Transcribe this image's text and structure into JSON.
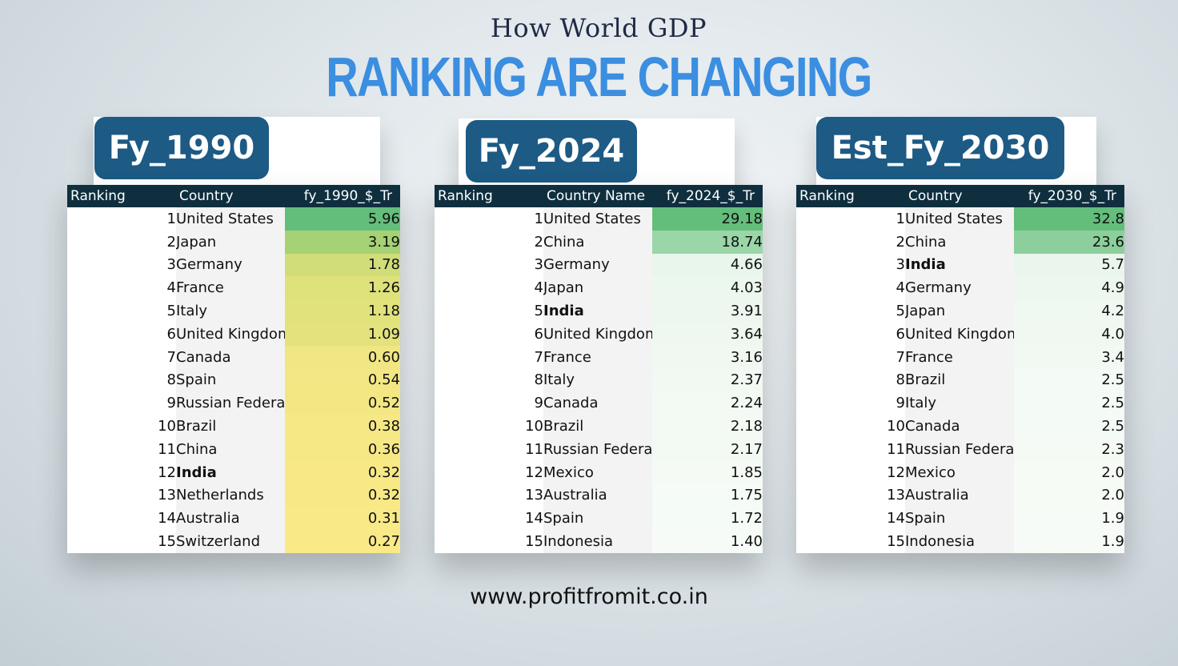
{
  "header": {
    "subtitle": "How World GDP",
    "title": "RANKING ARE CHANGING"
  },
  "footer": {
    "url": "www.profitfromit.co.in"
  },
  "colors": {
    "accent_title": "#3b8ee0",
    "label_bg": "#1d5a84",
    "header_bg": "#0f2f3f"
  },
  "chart_data": [
    {
      "type": "table",
      "label": "Fy_1990",
      "columns": [
        "Ranking",
        "Country",
        "fy_1990_$_Tr"
      ],
      "rows": [
        {
          "rank": "1",
          "country": "United States",
          "value": "5.96",
          "bg": "#63be7b"
        },
        {
          "rank": "2",
          "country": "Japan",
          "value": "3.19",
          "bg": "#a6d174"
        },
        {
          "rank": "3",
          "country": "Germany",
          "value": "1.78",
          "bg": "#d1dd79"
        },
        {
          "rank": "4",
          "country": "France",
          "value": "1.26",
          "bg": "#dfe17b"
        },
        {
          "rank": "5",
          "country": "Italy",
          "value": "1.18",
          "bg": "#e1e27b"
        },
        {
          "rank": "6",
          "country": "United Kingdom",
          "value": "1.09",
          "bg": "#e3e27c"
        },
        {
          "rank": "7",
          "country": "Canada",
          "value": "0.60",
          "bg": "#f0e683"
        },
        {
          "rank": "8",
          "country": "Spain",
          "value": "0.54",
          "bg": "#f2e784"
        },
        {
          "rank": "9",
          "country": "Russian Federation",
          "value": "0.52",
          "bg": "#f3e784"
        },
        {
          "rank": "10",
          "country": "Brazil",
          "value": "0.38",
          "bg": "#f6e885"
        },
        {
          "rank": "11",
          "country": "China",
          "value": "0.36",
          "bg": "#f7e886"
        },
        {
          "rank": "12",
          "country": "India",
          "value": "0.32",
          "bg": "#f8e986",
          "bold": true
        },
        {
          "rank": "13",
          "country": "Netherlands",
          "value": "0.32",
          "bg": "#f8e986"
        },
        {
          "rank": "14",
          "country": "Australia",
          "value": "0.31",
          "bg": "#f9e987"
        },
        {
          "rank": "15",
          "country": "Switzerland",
          "value": "0.27",
          "bg": "#fae987"
        }
      ]
    },
    {
      "type": "table",
      "label": "Fy_2024",
      "columns": [
        "Ranking",
        "Country Name",
        "fy_2024_$_Tr"
      ],
      "rows": [
        {
          "rank": "1",
          "country": "United States",
          "value": "29.18",
          "bg": "#63be7b"
        },
        {
          "rank": "2",
          "country": "China",
          "value": "18.74",
          "bg": "#9ad6a8"
        },
        {
          "rank": "3",
          "country": "Germany",
          "value": "4.66",
          "bg": "#e9f6ec"
        },
        {
          "rank": "4",
          "country": "Japan",
          "value": "4.03",
          "bg": "#ecf7ee"
        },
        {
          "rank": "5",
          "country": "India",
          "value": "3.91",
          "bg": "#edf7ef",
          "bold": true
        },
        {
          "rank": "6",
          "country": "United Kingdom",
          "value": "3.64",
          "bg": "#eef8f0"
        },
        {
          "rank": "7",
          "country": "France",
          "value": "3.16",
          "bg": "#f0f8f1"
        },
        {
          "rank": "8",
          "country": "Italy",
          "value": "2.37",
          "bg": "#f2f9f3"
        },
        {
          "rank": "9",
          "country": "Canada",
          "value": "2.24",
          "bg": "#f3faf4"
        },
        {
          "rank": "10",
          "country": "Brazil",
          "value": "2.18",
          "bg": "#f3faf4"
        },
        {
          "rank": "11",
          "country": "Russian Federation",
          "value": "2.17",
          "bg": "#f3faf4"
        },
        {
          "rank": "12",
          "country": "Mexico",
          "value": "1.85",
          "bg": "#f5faf5"
        },
        {
          "rank": "13",
          "country": "Australia",
          "value": "1.75",
          "bg": "#f5fbf6"
        },
        {
          "rank": "14",
          "country": "Spain",
          "value": "1.72",
          "bg": "#f5fbf6"
        },
        {
          "rank": "15",
          "country": "Indonesia",
          "value": "1.40",
          "bg": "#f7fbf7"
        }
      ]
    },
    {
      "type": "table",
      "label": "Est_Fy_2030",
      "columns": [
        "Ranking",
        "Country",
        "fy_2030_$_Tr"
      ],
      "rows": [
        {
          "rank": "1",
          "country": "United States",
          "value": "32.8",
          "bg": "#63be7b"
        },
        {
          "rank": "2",
          "country": "China",
          "value": "23.6",
          "bg": "#8ccf9c"
        },
        {
          "rank": "3",
          "country": "India",
          "value": "5.7",
          "bg": "#eaf6ed",
          "bold": true
        },
        {
          "rank": "4",
          "country": "Germany",
          "value": "4.9",
          "bg": "#edf7ef"
        },
        {
          "rank": "5",
          "country": "Japan",
          "value": "4.2",
          "bg": "#eff8f1"
        },
        {
          "rank": "6",
          "country": "United Kingdom",
          "value": "4.0",
          "bg": "#f0f8f1"
        },
        {
          "rank": "7",
          "country": "France",
          "value": "3.4",
          "bg": "#f1f9f2"
        },
        {
          "rank": "8",
          "country": "Brazil",
          "value": "2.5",
          "bg": "#f4faf5"
        },
        {
          "rank": "9",
          "country": "Italy",
          "value": "2.5",
          "bg": "#f4faf5"
        },
        {
          "rank": "10",
          "country": "Canada",
          "value": "2.5",
          "bg": "#f4faf5"
        },
        {
          "rank": "11",
          "country": "Russian Federation",
          "value": "2.3",
          "bg": "#f5faf5"
        },
        {
          "rank": "12",
          "country": "Mexico",
          "value": "2.0",
          "bg": "#f6fbf6"
        },
        {
          "rank": "13",
          "country": "Australia",
          "value": "2.0",
          "bg": "#f6fbf6"
        },
        {
          "rank": "14",
          "country": "Spain",
          "value": "1.9",
          "bg": "#f6fbf7"
        },
        {
          "rank": "15",
          "country": "Indonesia",
          "value": "1.9",
          "bg": "#f6fbf7"
        }
      ]
    }
  ]
}
